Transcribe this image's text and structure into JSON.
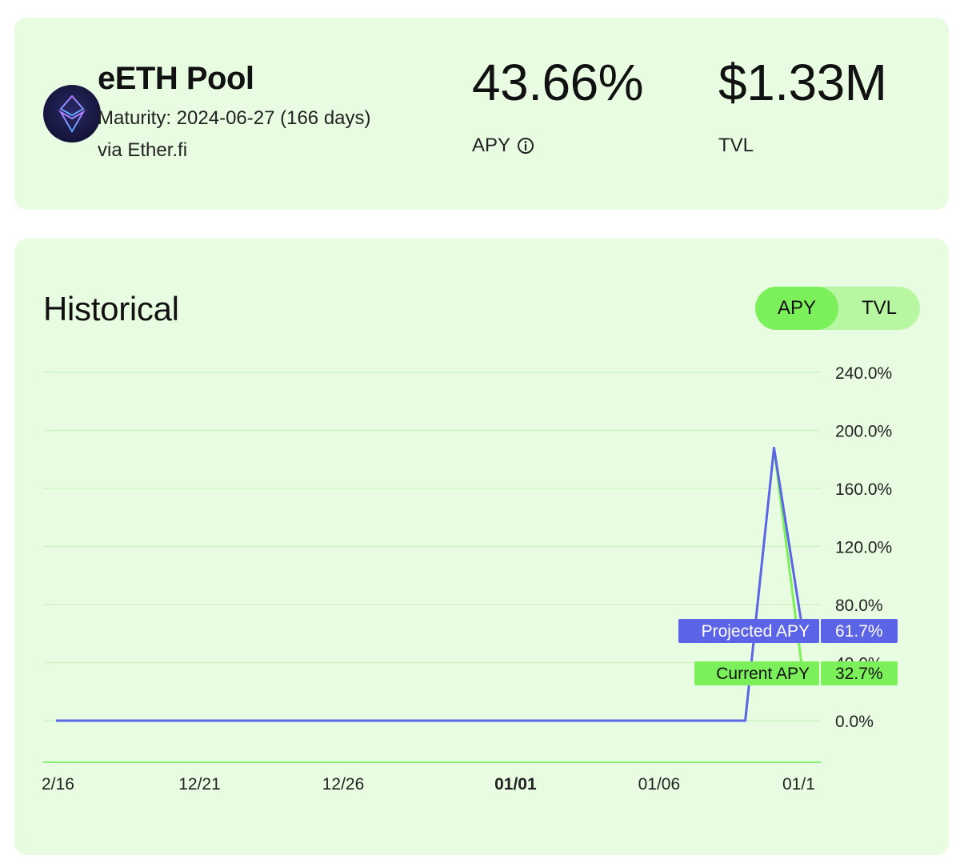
{
  "pool": {
    "title": "eETH Pool",
    "maturity": "Maturity: 2024-06-27 (166 days)",
    "via": "via Ether.fi",
    "logo_icon": "ether-fi-logo-icon"
  },
  "stats": {
    "apy_value": "43.66%",
    "apy_label": "APY",
    "tvl_value": "$1.33M",
    "tvl_label": "TVL"
  },
  "historical": {
    "title": "Historical",
    "toggle": {
      "apy_label": "APY",
      "tvl_label": "TVL",
      "selected": "APY"
    }
  },
  "colors": {
    "card_bg": "#e8fce2",
    "accent_green": "#7cf05a",
    "projected_line": "#5b63e6",
    "current_line": "#7cf05a"
  },
  "chart_data": {
    "type": "line",
    "x": [
      "12/16",
      "12/17",
      "12/18",
      "12/19",
      "12/20",
      "12/21",
      "12/22",
      "12/23",
      "12/24",
      "12/25",
      "12/26",
      "12/27",
      "12/28",
      "12/29",
      "12/30",
      "12/31",
      "01/01",
      "01/02",
      "01/03",
      "01/04",
      "01/05",
      "01/06",
      "01/07",
      "01/08",
      "01/09",
      "01/10",
      "01/11"
    ],
    "x_ticks": [
      "2/16",
      "12/21",
      "12/26",
      "01/01",
      "01/06",
      "01/1"
    ],
    "x_ticks_bold": "01/01",
    "y_ticks": [
      "240.0%",
      "200.0%",
      "160.0%",
      "120.0%",
      "80.0%",
      "40.0%",
      "0.0%"
    ],
    "ylim": [
      0,
      240
    ],
    "series": [
      {
        "name": "Projected APY",
        "color": "#5b63e6",
        "values": [
          0,
          0,
          0,
          0,
          0,
          0,
          0,
          0,
          0,
          0,
          0,
          0,
          0,
          0,
          0,
          0,
          0,
          0,
          0,
          0,
          0,
          0,
          0,
          0,
          0,
          188,
          61.7
        ],
        "last_label": "61.7%"
      },
      {
        "name": "Current APY",
        "color": "#7cf05a",
        "values": [
          null,
          null,
          null,
          null,
          null,
          null,
          null,
          null,
          null,
          null,
          null,
          null,
          null,
          null,
          null,
          null,
          null,
          null,
          null,
          null,
          null,
          null,
          null,
          null,
          null,
          188,
          32.7
        ],
        "last_label": "32.7%"
      }
    ]
  }
}
